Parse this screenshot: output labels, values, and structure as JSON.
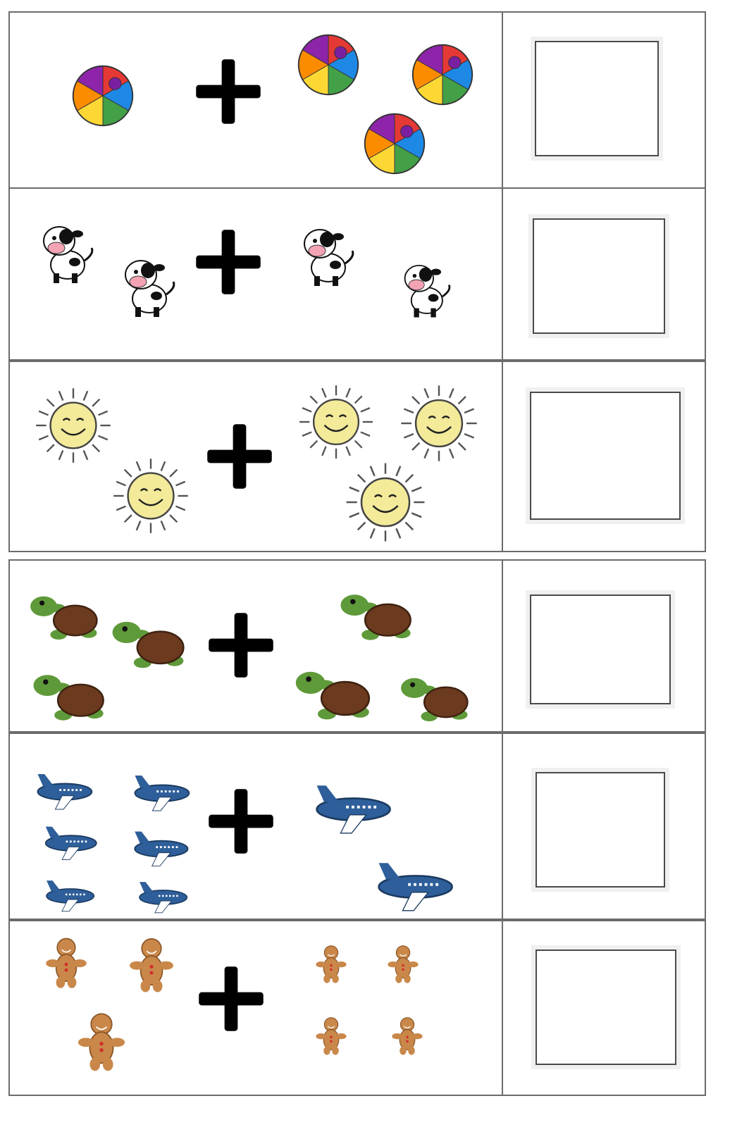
{
  "worksheet": {
    "rows": [
      {
        "picture": "beach-ball",
        "left_count": 1,
        "right_count": 3
      },
      {
        "picture": "cow",
        "left_count": 2,
        "right_count": 2
      },
      {
        "picture": "sun",
        "left_count": 2,
        "right_count": 3
      },
      {
        "picture": "turtle",
        "left_count": 3,
        "right_count": 3
      },
      {
        "picture": "airplane",
        "left_count": 6,
        "right_count": 2
      },
      {
        "picture": "gingerbread-man",
        "left_count": 3,
        "right_count": 4
      }
    ],
    "colors": {
      "border": "#6b6b6b",
      "plus": "#000000",
      "ball": [
        "#e53935",
        "#1e88e5",
        "#43a047",
        "#fdd835",
        "#fb8c00",
        "#8e24aa"
      ],
      "cow_nose": "#f4a3b4",
      "sun_face": "#f3ea9a",
      "turtle_shell": "#6b3a1f",
      "turtle_skin": "#5f9a3a",
      "plane": "#2e5f9a",
      "gingerbread": "#c9884a"
    }
  }
}
